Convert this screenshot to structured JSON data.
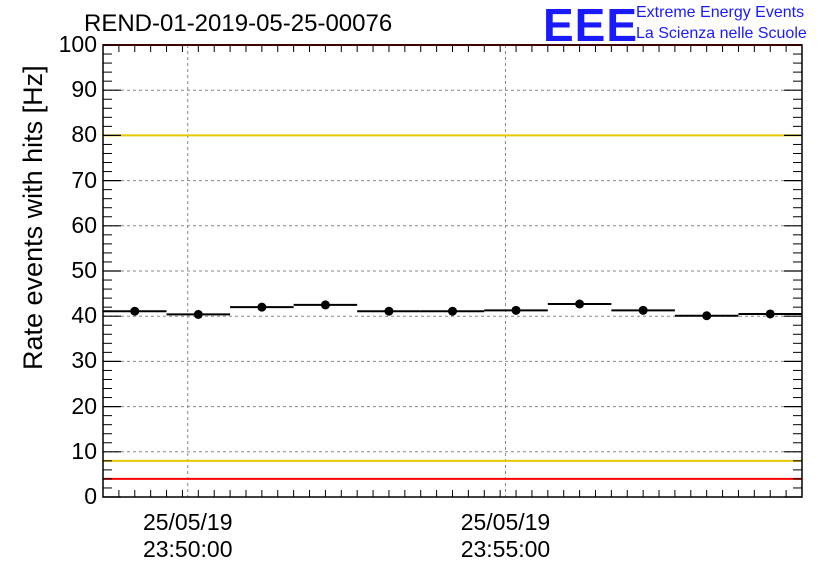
{
  "header": {
    "title": "REND-01-2019-05-25-00076",
    "logo_text": "EEE",
    "logo_line1": "Extreme Energy Events",
    "logo_line2": "La Scienza nelle Scuole"
  },
  "colors": {
    "accent_logo": "#1a1aff",
    "red_limit": "#ff0000",
    "yellow_limit": "#e8c800",
    "data": "#000000",
    "grid": "#888888"
  },
  "chart_data": {
    "type": "scatter",
    "title": "REND-01-2019-05-25-00076",
    "ylabel": "Rate events with hits [Hz]",
    "xlabel": "",
    "ylim": [
      0,
      100
    ],
    "xlim": [
      "2019-05-25 23:48:40",
      "2019-05-25 23:59:40"
    ],
    "grid": true,
    "yticks": [
      "0",
      "10",
      "20",
      "30",
      "40",
      "50",
      "60",
      "70",
      "80",
      "90",
      "100"
    ],
    "xticks": [
      {
        "date": "25/05/19",
        "time": "23:50:00",
        "at": "2019-05-25 23:50:00"
      },
      {
        "date": "25/05/19",
        "time": "23:55:00",
        "at": "2019-05-25 23:55:00"
      }
    ],
    "reference_lines": [
      {
        "y": 100,
        "color": "red"
      },
      {
        "y": 80,
        "color": "yellow"
      },
      {
        "y": 8,
        "color": "yellow"
      },
      {
        "y": 4,
        "color": "red"
      }
    ],
    "bin_width_seconds": 60,
    "series": [
      {
        "x": [
          "23:49:10",
          "23:50:10",
          "23:51:10",
          "23:52:10",
          "23:53:10",
          "23:54:10",
          "23:55:10",
          "23:56:10",
          "23:57:10",
          "23:58:10",
          "23:59:10"
        ],
        "values": [
          41.1,
          40.4,
          42.0,
          42.5,
          41.1,
          41.1,
          41.3,
          42.7,
          41.3,
          40.1,
          40.5
        ]
      }
    ]
  }
}
